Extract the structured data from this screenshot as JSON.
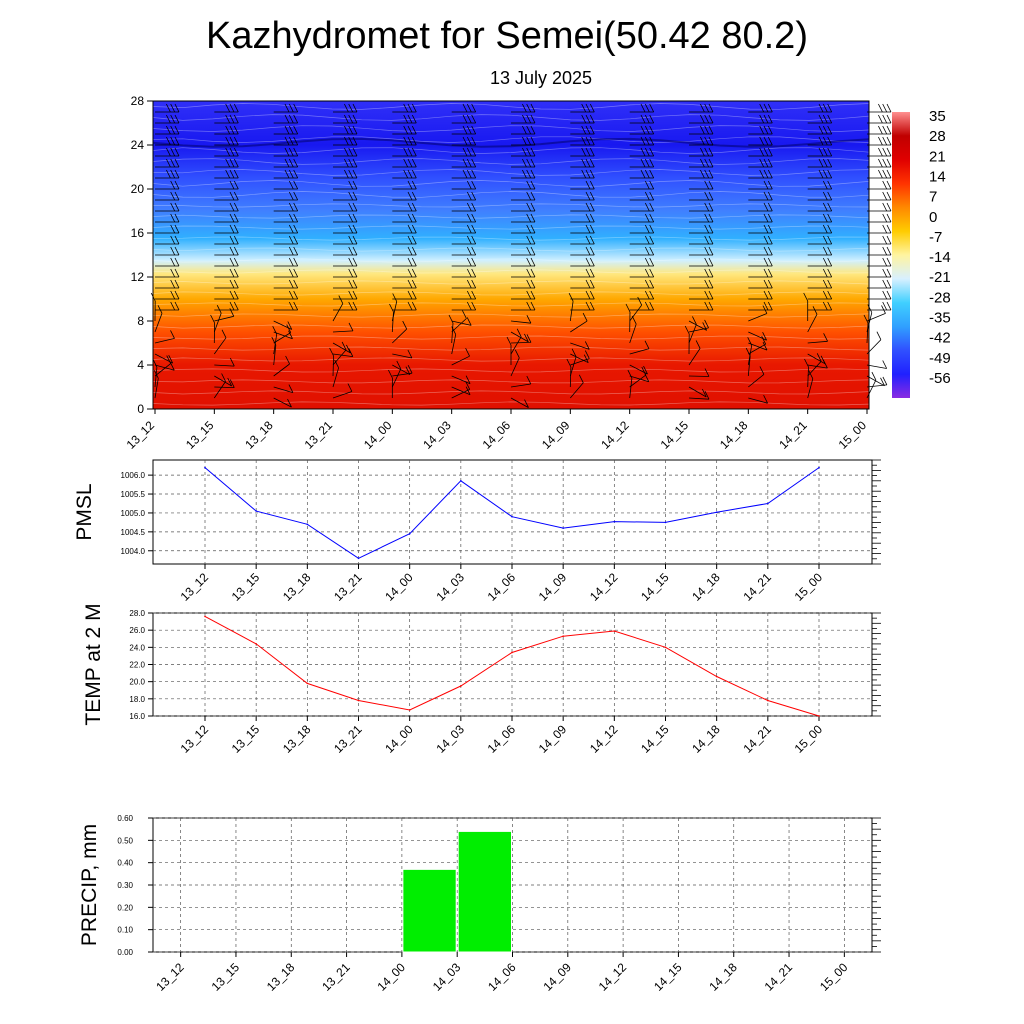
{
  "page": {
    "title": "Kazhydromet for Semei(50.42 80.2)",
    "subtitle": "13 July 2025"
  },
  "chart_data": [
    {
      "type": "heatmap",
      "name": "upper-air",
      "x": [
        "13_12",
        "13_15",
        "13_18",
        "13_21",
        "14_00",
        "14_03",
        "14_06",
        "14_09",
        "14_12",
        "14_15",
        "14_18",
        "14_21",
        "15_00"
      ],
      "yticks": [
        "0",
        "4",
        "8",
        "12",
        "16",
        "20",
        "24",
        "28"
      ],
      "ylim": [
        0,
        28
      ],
      "colorbar": {
        "labels": [
          "35",
          "28",
          "21",
          "14",
          "7",
          "0",
          "-7",
          "-14",
          "-21",
          "-28",
          "-35",
          "-42",
          "-49",
          "-56"
        ],
        "range": [
          -60,
          38
        ],
        "colors": [
          "#8a2be2",
          "#2020ff",
          "#3050ff",
          "#30a0ff",
          "#40d0ff",
          "#d8f0ff",
          "#fff4a0",
          "#ffcc00",
          "#ff8800",
          "#ff3300",
          "#e00000",
          "#c00000",
          "#ff9090"
        ]
      },
      "layers": [
        {
          "h": 0,
          "color": "#e01000"
        },
        {
          "h": 4,
          "color": "#e81800"
        },
        {
          "h": 7,
          "color": "#ff5000"
        },
        {
          "h": 10,
          "color": "#ffa800"
        },
        {
          "h": 12.3,
          "color": "#ffe880"
        },
        {
          "h": 13.5,
          "color": "#d0f0ff"
        },
        {
          "h": 15.5,
          "color": "#30b0ff"
        },
        {
          "h": 18,
          "color": "#4080ff"
        },
        {
          "h": 21,
          "color": "#3050ff"
        },
        {
          "h": 24,
          "color": "#1818f0"
        },
        {
          "h": 28,
          "color": "#3030f8"
        }
      ]
    },
    {
      "type": "line",
      "name": "pmsl",
      "ylabel": "PMSL",
      "x": [
        "13_12",
        "13_15",
        "13_18",
        "13_21",
        "14_00",
        "14_03",
        "14_06",
        "14_09",
        "14_12",
        "14_15",
        "14_18",
        "14_21",
        "15_00"
      ],
      "values": [
        1006.2,
        1005.05,
        1004.7,
        1003.8,
        1004.45,
        1005.85,
        1004.9,
        1004.6,
        1004.77,
        1004.75,
        1005.02,
        1005.25,
        1006.2
      ],
      "yticks": [
        "1004.0",
        "1004.5",
        "1005.0",
        "1005.5",
        "1006.0"
      ],
      "ylim": [
        1003.65,
        1006.4
      ],
      "color": "#0000ff"
    },
    {
      "type": "line",
      "name": "temp",
      "ylabel": "TEMP at 2 M",
      "x": [
        "13_12",
        "13_15",
        "13_18",
        "13_21",
        "14_00",
        "14_03",
        "14_06",
        "14_09",
        "14_12",
        "14_15",
        "14_18",
        "14_21",
        "15_00"
      ],
      "values": [
        27.6,
        24.4,
        19.8,
        17.8,
        16.7,
        19.5,
        23.4,
        25.3,
        25.9,
        24.0,
        20.6,
        17.8,
        16.0
      ],
      "yticks": [
        "16.0",
        "18.0",
        "20.0",
        "22.0",
        "24.0",
        "26.0",
        "28.0"
      ],
      "ylim": [
        16,
        28
      ],
      "color": "#ff0000"
    },
    {
      "type": "bar",
      "name": "precip",
      "ylabel": "PRECIP, mm",
      "categories": [
        "13_12",
        "13_15",
        "13_18",
        "13_21",
        "14_00",
        "14_03",
        "14_06",
        "14_09",
        "14_12",
        "14_15",
        "14_18",
        "14_21",
        "15_00"
      ],
      "values": [
        0,
        0,
        0,
        0,
        0,
        0.37,
        0.54,
        0,
        0,
        0,
        0,
        0,
        0
      ],
      "yticks": [
        "0.00",
        "0.10",
        "0.20",
        "0.30",
        "0.40",
        "0.50",
        "0.60"
      ],
      "ylim": [
        0,
        0.6
      ],
      "color": "#00ee00"
    }
  ]
}
